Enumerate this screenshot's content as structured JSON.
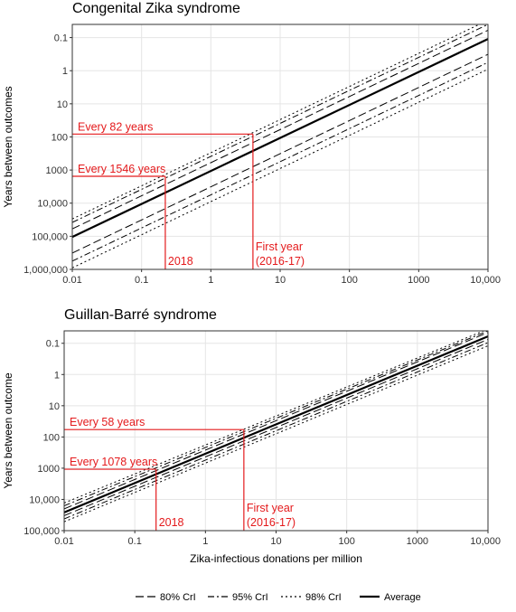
{
  "colors": {
    "highlight": "#e41a1c",
    "series": "#000000",
    "grid": "#e5e5e5",
    "frame": "#333333"
  },
  "legend": {
    "placement": "bottom",
    "entries": [
      {
        "label": "80% CrI",
        "dash": "long-dash"
      },
      {
        "label": "95% CrI",
        "dash": "dash-dot"
      },
      {
        "label": "98% CrI",
        "dash": "dotted"
      },
      {
        "label": "Average",
        "dash": "solid"
      }
    ]
  },
  "chart_data": [
    {
      "type": "line",
      "title": "Congenital Zika syndrome",
      "xlabel": "",
      "ylabel": "Years between outcomes",
      "x_scale": "log",
      "y_scale": "log",
      "y_reversed": true,
      "grid": true,
      "xlim": [
        0.01,
        10000
      ],
      "ylim": [
        1000000,
        0.04
      ],
      "x_ticks": [
        0.01,
        0.1,
        1,
        10,
        100,
        1000,
        10000
      ],
      "x_tick_labels": [
        "0.01",
        "0.1",
        "1",
        "10",
        "100",
        "1000",
        "10,000"
      ],
      "y_ticks": [
        0.1,
        1,
        10,
        100,
        1000,
        10000,
        100000,
        1000000
      ],
      "y_tick_labels": [
        "0.1",
        "1",
        "10",
        "100",
        "1000",
        "10,000",
        "100,000",
        "1,000,000"
      ],
      "series": [
        {
          "dash": "solid",
          "x": [
            0.01,
            10000
          ],
          "y": [
            105000,
            0.11
          ]
        },
        {
          "dash": "long-dash",
          "x": [
            0.01,
            10000
          ],
          "y": [
            60000,
            0.06
          ]
        },
        {
          "dash": "long-dash",
          "x": [
            0.01,
            10000
          ],
          "y": [
            320000,
            0.32
          ]
        },
        {
          "dash": "dash-dot",
          "x": [
            0.01,
            10000
          ],
          "y": [
            38000,
            0.04
          ]
        },
        {
          "dash": "dash-dot",
          "x": [
            0.01,
            10000
          ],
          "y": [
            560000,
            0.56
          ]
        },
        {
          "dash": "dotted",
          "x": [
            0.01,
            10000
          ],
          "y": [
            30000,
            0.03
          ]
        },
        {
          "dash": "dotted",
          "x": [
            0.01,
            10000
          ],
          "y": [
            900000,
            0.9
          ]
        }
      ],
      "annotations": [
        {
          "text": "Every 82 years",
          "x": 4.05,
          "y": 82
        },
        {
          "text": "Every 1546 years",
          "x": 0.22,
          "y": 1546
        }
      ],
      "vertical_labels": [
        {
          "lines": [
            "2018"
          ],
          "x": 0.22
        },
        {
          "lines": [
            "First year",
            "(2016-17)"
          ],
          "x": 4.05
        }
      ]
    },
    {
      "type": "line",
      "title": "Guillan-Barré syndrome",
      "xlabel": "Zika-infectious donations per million",
      "ylabel": "Years between outcome",
      "x_scale": "log",
      "y_scale": "log",
      "y_reversed": true,
      "grid": true,
      "xlim": [
        0.01,
        10000
      ],
      "ylim": [
        100000,
        0.04
      ],
      "x_ticks": [
        0.01,
        0.1,
        1,
        10,
        100,
        1000,
        10000
      ],
      "x_tick_labels": [
        "0.01",
        "0.1",
        "1",
        "10",
        "100",
        "1000",
        "10,000"
      ],
      "y_ticks": [
        0.1,
        1,
        10,
        100,
        1000,
        10000,
        100000
      ],
      "y_tick_labels": [
        "0.1",
        "1",
        "10",
        "100",
        "1000",
        "10,000",
        "100,000"
      ],
      "series": [
        {
          "dash": "solid",
          "x": [
            0.01,
            10000
          ],
          "y": [
            26000,
            0.06
          ]
        },
        {
          "dash": "long-dash",
          "x": [
            0.01,
            10000
          ],
          "y": [
            20000,
            0.045
          ]
        },
        {
          "dash": "long-dash",
          "x": [
            0.01,
            10000
          ],
          "y": [
            33000,
            0.075
          ]
        },
        {
          "dash": "dash-dot",
          "x": [
            0.01,
            10000
          ],
          "y": [
            16000,
            0.04
          ]
        },
        {
          "dash": "dash-dot",
          "x": [
            0.01,
            10000
          ],
          "y": [
            42000,
            0.095
          ]
        },
        {
          "dash": "dotted",
          "x": [
            0.01,
            10000
          ],
          "y": [
            13000,
            0.035
          ]
        },
        {
          "dash": "dotted",
          "x": [
            0.01,
            10000
          ],
          "y": [
            52000,
            0.12
          ]
        }
      ],
      "annotations": [
        {
          "text": "Every 58 years",
          "x": 3.5,
          "y": 58
        },
        {
          "text": "Every 1078 years",
          "x": 0.2,
          "y": 1078
        }
      ],
      "vertical_labels": [
        {
          "lines": [
            "2018"
          ],
          "x": 0.2
        },
        {
          "lines": [
            "First year",
            "(2016-17)"
          ],
          "x": 3.5
        }
      ]
    }
  ]
}
